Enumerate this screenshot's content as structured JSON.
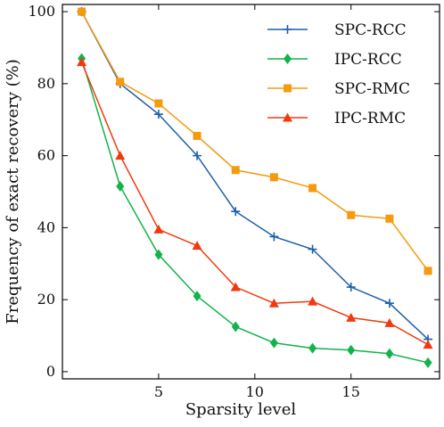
{
  "chart_data": {
    "type": "line",
    "title": "",
    "xlabel": "Sparsity level",
    "ylabel": "Frequency of exact recovery (%)",
    "xlim": [
      0,
      19.6
    ],
    "ylim": [
      -2,
      102
    ],
    "xticks": [
      5,
      10,
      15
    ],
    "yticks": [
      0,
      20,
      40,
      60,
      80,
      100
    ],
    "grid": false,
    "legend_position": "top-right",
    "x": [
      1,
      3,
      5,
      7,
      9,
      11,
      13,
      15,
      17,
      19
    ],
    "series": [
      {
        "name": "SPC-RCC",
        "color": "#1f5fa8",
        "marker": "plus",
        "values": [
          100,
          80,
          71.5,
          60,
          44.5,
          37.5,
          34,
          23.5,
          19,
          9
        ]
      },
      {
        "name": "IPC-RCC",
        "color": "#12b34a",
        "marker": "diamond",
        "values": [
          87,
          51.5,
          32.5,
          21,
          12.5,
          8,
          6.5,
          6,
          5,
          2.5
        ]
      },
      {
        "name": "SPC-RMC",
        "color": "#f59a0c",
        "marker": "square",
        "values": [
          100,
          80.5,
          74.5,
          65.5,
          56,
          54,
          51,
          43.5,
          42.5,
          28
        ]
      },
      {
        "name": "IPC-RMC",
        "color": "#f03a0e",
        "marker": "triangle",
        "values": [
          86,
          60,
          39.5,
          35,
          23.5,
          19,
          19.5,
          15,
          13.5,
          7.5
        ]
      }
    ]
  }
}
